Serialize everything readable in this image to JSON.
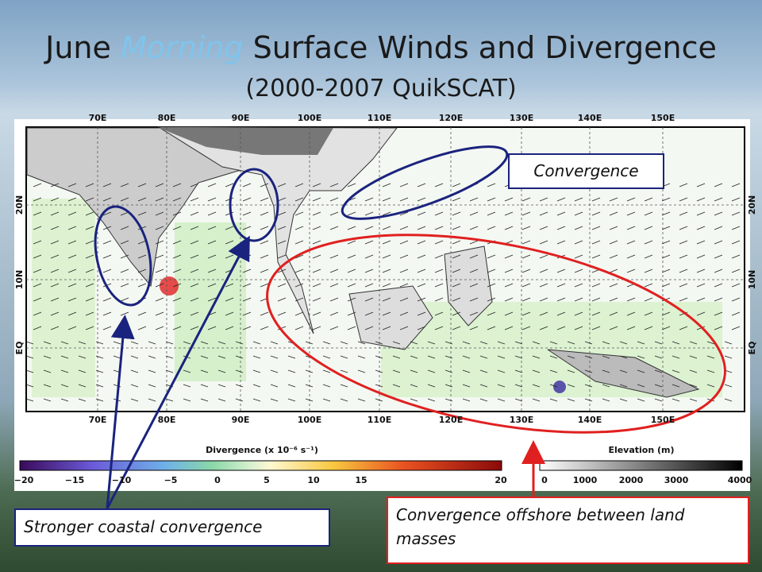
{
  "header": {
    "title_start": "June",
    "title_emphasis": "Morning",
    "title_end": "Surface Winds and Divergence",
    "subtitle": "(2000-2007 QuikSCAT)"
  },
  "map": {
    "longitude_labels": [
      "70E",
      "80E",
      "90E",
      "100E",
      "110E",
      "120E",
      "130E",
      "140E",
      "150E"
    ],
    "latitude_labels": [
      "20N",
      "10N",
      "EQ"
    ]
  },
  "colorbars": [
    {
      "label": "Divergence (x 10⁻⁶ s⁻¹)",
      "ticks": [
        "−20",
        "−15",
        "−10",
        "−5",
        "0",
        "5",
        "10",
        "15",
        "20"
      ]
    },
    {
      "label": "Elevation (m)",
      "ticks": [
        "0",
        "1000",
        "2000",
        "3000",
        "4000"
      ]
    }
  ],
  "callouts": [
    "Convergence",
    "Stronger coastal convergence",
    "Convergence offshore between land masses"
  ]
}
